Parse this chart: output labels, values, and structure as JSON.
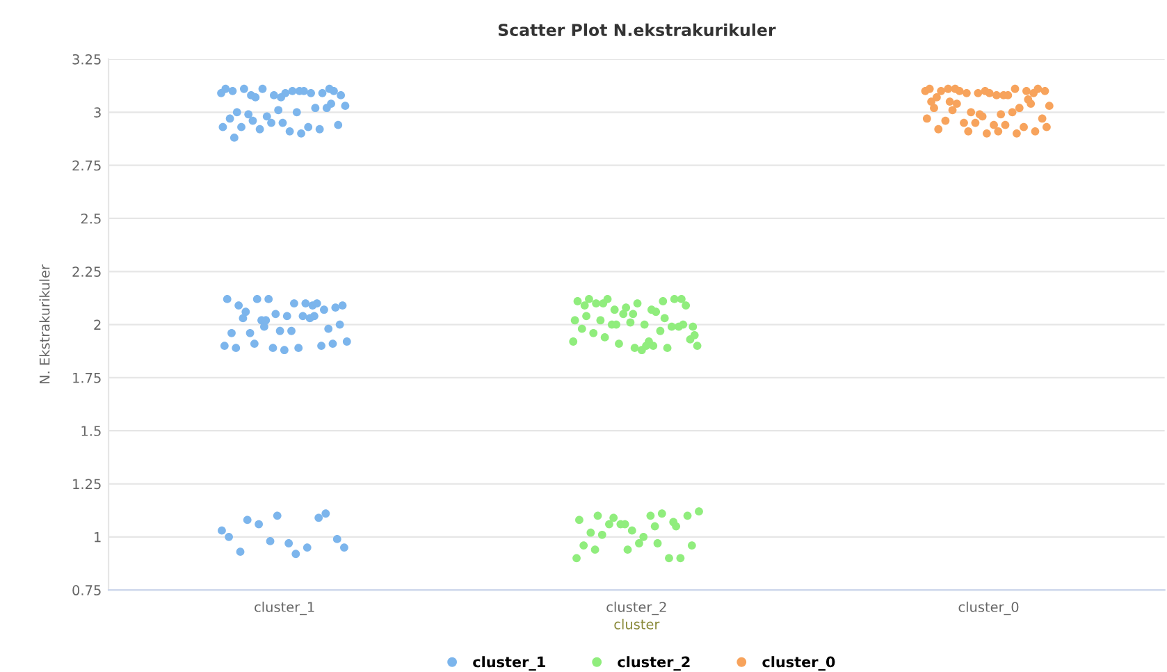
{
  "chart_data": {
    "type": "scatter",
    "title": "Scatter Plot N.ekstrakurikuler",
    "xlabel": "cluster",
    "ylabel": "N. Ekstrakurikuler",
    "categories": [
      "cluster_1",
      "cluster_2",
      "cluster_0"
    ],
    "ylim": [
      0.75,
      3.25
    ],
    "yticks": [
      {
        "value": 0.75,
        "label": "0.75"
      },
      {
        "value": 1,
        "label": "1"
      },
      {
        "value": 1.25,
        "label": "1.25"
      },
      {
        "value": 1.5,
        "label": "1.5"
      },
      {
        "value": 1.75,
        "label": "1.75"
      },
      {
        "value": 2,
        "label": "2"
      },
      {
        "value": 2.25,
        "label": "2.25"
      },
      {
        "value": 2.5,
        "label": "2.5"
      },
      {
        "value": 2.75,
        "label": "2.75"
      },
      {
        "value": 3,
        "label": "3"
      },
      {
        "value": 3.25,
        "label": "3.25"
      }
    ],
    "grid": "y",
    "legend": "bottom",
    "marker": "circle",
    "series": [
      {
        "name": "cluster_1",
        "color": "#7cb5ec",
        "x": [
          "cluster_1",
          "cluster_1",
          "cluster_1",
          "cluster_1",
          "cluster_1",
          "cluster_1",
          "cluster_1",
          "cluster_1",
          "cluster_1",
          "cluster_1",
          "cluster_1",
          "cluster_1",
          "cluster_1",
          "cluster_1",
          "cluster_1",
          "cluster_1",
          "cluster_1",
          "cluster_1",
          "cluster_1",
          "cluster_1",
          "cluster_1",
          "cluster_1",
          "cluster_1",
          "cluster_1",
          "cluster_1",
          "cluster_1",
          "cluster_1",
          "cluster_1",
          "cluster_1",
          "cluster_1",
          "cluster_1",
          "cluster_1",
          "cluster_1",
          "cluster_1",
          "cluster_1",
          "cluster_1",
          "cluster_1",
          "cluster_1",
          "cluster_1",
          "cluster_1",
          "cluster_1",
          "cluster_1",
          "cluster_1",
          "cluster_1",
          "cluster_1",
          "cluster_1",
          "cluster_1",
          "cluster_1",
          "cluster_1",
          "cluster_1",
          "cluster_1",
          "cluster_1",
          "cluster_1",
          "cluster_1",
          "cluster_1",
          "cluster_1",
          "cluster_1",
          "cluster_1",
          "cluster_1",
          "cluster_1",
          "cluster_1",
          "cluster_1",
          "cluster_1",
          "cluster_1",
          "cluster_1",
          "cluster_1",
          "cluster_1",
          "cluster_1",
          "cluster_1",
          "cluster_1",
          "cluster_1",
          "cluster_1",
          "cluster_1",
          "cluster_1",
          "cluster_1",
          "cluster_1",
          "cluster_1",
          "cluster_1",
          "cluster_1",
          "cluster_1",
          "cluster_1",
          "cluster_1",
          "cluster_1",
          "cluster_1",
          "cluster_1",
          "cluster_1",
          "cluster_1",
          "cluster_1",
          "cluster_1",
          "cluster_1"
        ],
        "values": [
          3.09,
          3.1,
          3.08,
          3.11,
          3.07,
          3.1,
          3.09,
          3.11,
          3.08,
          3.1,
          3.11,
          3.09,
          3.08,
          3.11,
          3.1,
          3.07,
          3.1,
          3.09,
          3.0,
          3.02,
          2.98,
          3.03,
          3.0,
          2.99,
          3.02,
          3.01,
          2.97,
          2.93,
          2.92,
          2.94,
          2.91,
          2.93,
          2.92,
          2.95,
          2.93,
          2.9,
          2.96,
          3.04,
          2.95,
          2.88,
          2.09,
          1.99,
          2.09,
          2.1,
          2.06,
          2.07,
          2.05,
          2.12,
          2.1,
          2.12,
          2.08,
          2.04,
          2.09,
          2.1,
          2.12,
          1.92,
          1.89,
          1.96,
          1.98,
          1.97,
          1.96,
          2.03,
          2.02,
          2.0,
          1.97,
          2.03,
          1.9,
          1.89,
          1.9,
          2.04,
          1.91,
          1.91,
          1.88,
          1.89,
          2.04,
          2.02,
          0.95,
          0.92,
          1.08,
          1.11,
          1.1,
          1.0,
          0.95,
          1.06,
          0.99,
          0.97,
          0.93,
          1.09,
          0.98,
          1.03
        ]
      },
      {
        "name": "cluster_2",
        "color": "#90ed7d",
        "x": [
          "cluster_2",
          "cluster_2",
          "cluster_2",
          "cluster_2",
          "cluster_2",
          "cluster_2",
          "cluster_2",
          "cluster_2",
          "cluster_2",
          "cluster_2",
          "cluster_2",
          "cluster_2",
          "cluster_2",
          "cluster_2",
          "cluster_2",
          "cluster_2",
          "cluster_2",
          "cluster_2",
          "cluster_2",
          "cluster_2",
          "cluster_2",
          "cluster_2",
          "cluster_2",
          "cluster_2",
          "cluster_2",
          "cluster_2",
          "cluster_2",
          "cluster_2",
          "cluster_2",
          "cluster_2",
          "cluster_2",
          "cluster_2",
          "cluster_2",
          "cluster_2",
          "cluster_2",
          "cluster_2",
          "cluster_2",
          "cluster_2",
          "cluster_2",
          "cluster_2",
          "cluster_2",
          "cluster_2",
          "cluster_2",
          "cluster_2",
          "cluster_2",
          "cluster_2",
          "cluster_2",
          "cluster_2",
          "cluster_2",
          "cluster_2",
          "cluster_2",
          "cluster_2",
          "cluster_2",
          "cluster_2",
          "cluster_2",
          "cluster_2",
          "cluster_2",
          "cluster_2",
          "cluster_2",
          "cluster_2",
          "cluster_2",
          "cluster_2",
          "cluster_2",
          "cluster_2",
          "cluster_2",
          "cluster_2",
          "cluster_2",
          "cluster_2",
          "cluster_2",
          "cluster_2"
        ],
        "values": [
          1.92,
          2.07,
          2.1,
          2.12,
          2.05,
          2.09,
          2.11,
          2.07,
          1.99,
          2.0,
          2.1,
          2.12,
          2.08,
          2.11,
          2.06,
          2.12,
          2.09,
          2.1,
          2.12,
          1.89,
          1.91,
          1.9,
          1.92,
          2.02,
          1.99,
          2.01,
          1.98,
          1.97,
          2.0,
          1.93,
          1.88,
          1.96,
          1.99,
          2.05,
          2.02,
          1.9,
          1.94,
          2.0,
          1.89,
          2.04,
          2.03,
          2.0,
          1.95,
          1.9,
          1.1,
          1.05,
          0.94,
          1.08,
          0.97,
          1.06,
          1.1,
          0.97,
          1.02,
          0.9,
          1.06,
          1.12,
          1.1,
          1.01,
          0.9,
          1.03,
          0.96,
          1.11,
          1.09,
          0.96,
          1.0,
          0.94,
          1.07,
          1.06,
          0.9,
          1.05
        ]
      },
      {
        "name": "cluster_0",
        "color": "#f7a35c",
        "x": [
          "cluster_0",
          "cluster_0",
          "cluster_0",
          "cluster_0",
          "cluster_0",
          "cluster_0",
          "cluster_0",
          "cluster_0",
          "cluster_0",
          "cluster_0",
          "cluster_0",
          "cluster_0",
          "cluster_0",
          "cluster_0",
          "cluster_0",
          "cluster_0",
          "cluster_0",
          "cluster_0",
          "cluster_0",
          "cluster_0",
          "cluster_0",
          "cluster_0",
          "cluster_0",
          "cluster_0",
          "cluster_0",
          "cluster_0",
          "cluster_0",
          "cluster_0",
          "cluster_0",
          "cluster_0",
          "cluster_0",
          "cluster_0",
          "cluster_0",
          "cluster_0",
          "cluster_0",
          "cluster_0",
          "cluster_0",
          "cluster_0",
          "cluster_0",
          "cluster_0",
          "cluster_0",
          "cluster_0",
          "cluster_0",
          "cluster_0",
          "cluster_0",
          "cluster_0",
          "cluster_0",
          "cluster_0"
        ],
        "values": [
          3.1,
          3.08,
          3.11,
          3.09,
          3.1,
          3.07,
          3.11,
          3.09,
          3.1,
          3.08,
          3.11,
          3.1,
          3.09,
          3.11,
          3.08,
          3.1,
          3.11,
          3.09,
          3.1,
          3.02,
          3.0,
          3.03,
          2.99,
          3.01,
          3.04,
          2.98,
          3.02,
          3.0,
          2.95,
          2.97,
          2.94,
          2.96,
          2.93,
          2.95,
          2.97,
          2.94,
          3.04,
          2.91,
          2.9,
          2.92,
          2.9,
          2.91,
          2.93,
          2.91,
          3.05,
          3.06,
          2.99,
          3.05
        ]
      }
    ]
  }
}
